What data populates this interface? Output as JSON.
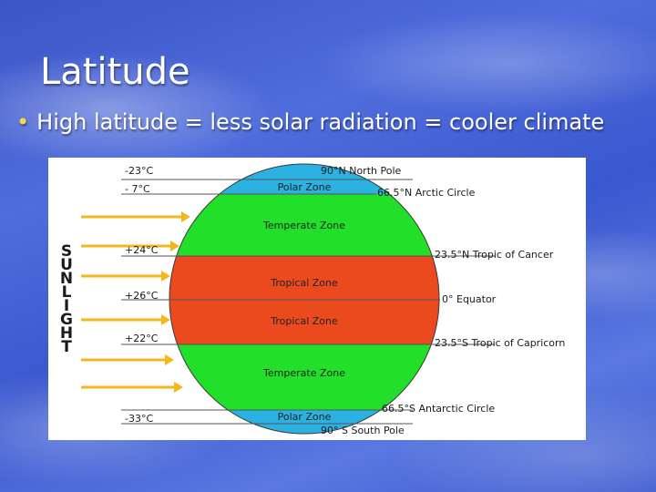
{
  "slide": {
    "title": "Latitude",
    "bullet": "High latitude = less solar radiation = cooler climate"
  },
  "diagram": {
    "side_label_letters": [
      "S",
      "U",
      "N",
      "L",
      "I",
      "G",
      "H",
      "T"
    ],
    "temperatures": {
      "t1": "-23°C",
      "t2": "- 7°C",
      "t3": "+24°C",
      "t4": "+26°C",
      "t5": "+22°C",
      "t6": "-33°C"
    },
    "zones": {
      "polar_north": "Polar Zone",
      "temperate_north": "Temperate Zone",
      "tropical_north": "Tropical Zone",
      "tropical_south": "Tropical Zone",
      "temperate_south": "Temperate Zone",
      "polar_south": "Polar Zone"
    },
    "latitudes": {
      "north_pole": "90°N North Pole",
      "arctic_circle": "66.5°N Arctic Circle",
      "tropic_cancer": "23.5°N Tropic of Cancer",
      "equator": "0° Equator",
      "tropic_capricorn": "23.5°S Tropic of Capricorn",
      "antarctic_circle": "66.5°S Antarctic Circle",
      "south_pole": "90° S South Pole"
    },
    "colors": {
      "polar": "#2bb2e2",
      "temperate": "#22e02a",
      "tropical": "#ea4a1e",
      "arrow": "#f2b71a",
      "line": "#555555"
    }
  }
}
